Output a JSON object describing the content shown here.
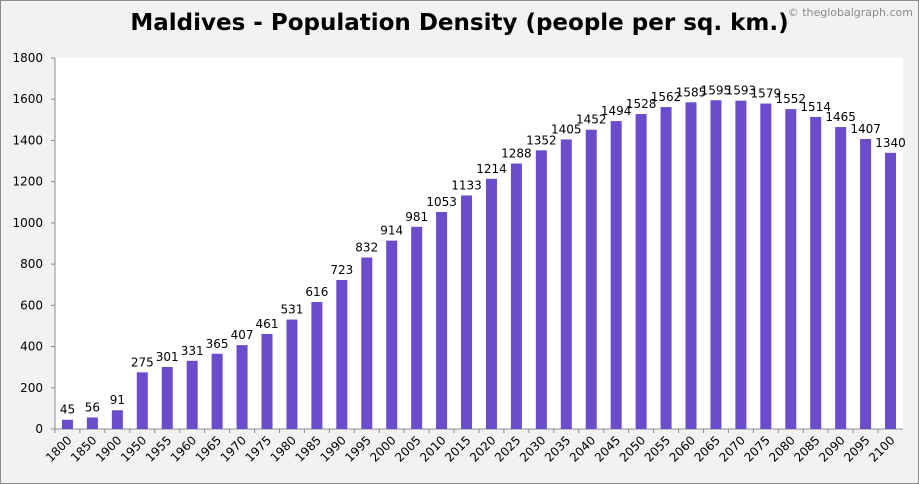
{
  "chart_data": {
    "type": "bar",
    "title": "Maldives - Population Density (people per sq. km.)",
    "watermark": "© theglobalgraph.com",
    "xlabel": "",
    "ylabel": "",
    "ylim": [
      0,
      1800
    ],
    "yticks": [
      0,
      200,
      400,
      600,
      800,
      1000,
      1200,
      1400,
      1600,
      1800
    ],
    "grid": false,
    "bar_color": "#6a4ccc",
    "categories": [
      "1800",
      "1850",
      "1900",
      "1950",
      "1955",
      "1960",
      "1965",
      "1970",
      "1975",
      "1980",
      "1985",
      "1990",
      "1995",
      "2000",
      "2005",
      "2010",
      "2015",
      "2020",
      "2025",
      "2030",
      "2035",
      "2040",
      "2045",
      "2050",
      "2055",
      "2060",
      "2065",
      "2070",
      "2075",
      "2080",
      "2085",
      "2090",
      "2095",
      "2100"
    ],
    "values": [
      45,
      56,
      91,
      275,
      301,
      331,
      365,
      407,
      461,
      531,
      616,
      723,
      832,
      914,
      981,
      1053,
      1133,
      1214,
      1288,
      1352,
      1405,
      1452,
      1494,
      1528,
      1562,
      1585,
      1595,
      1593,
      1579,
      1552,
      1514,
      1465,
      1407,
      1340
    ]
  }
}
